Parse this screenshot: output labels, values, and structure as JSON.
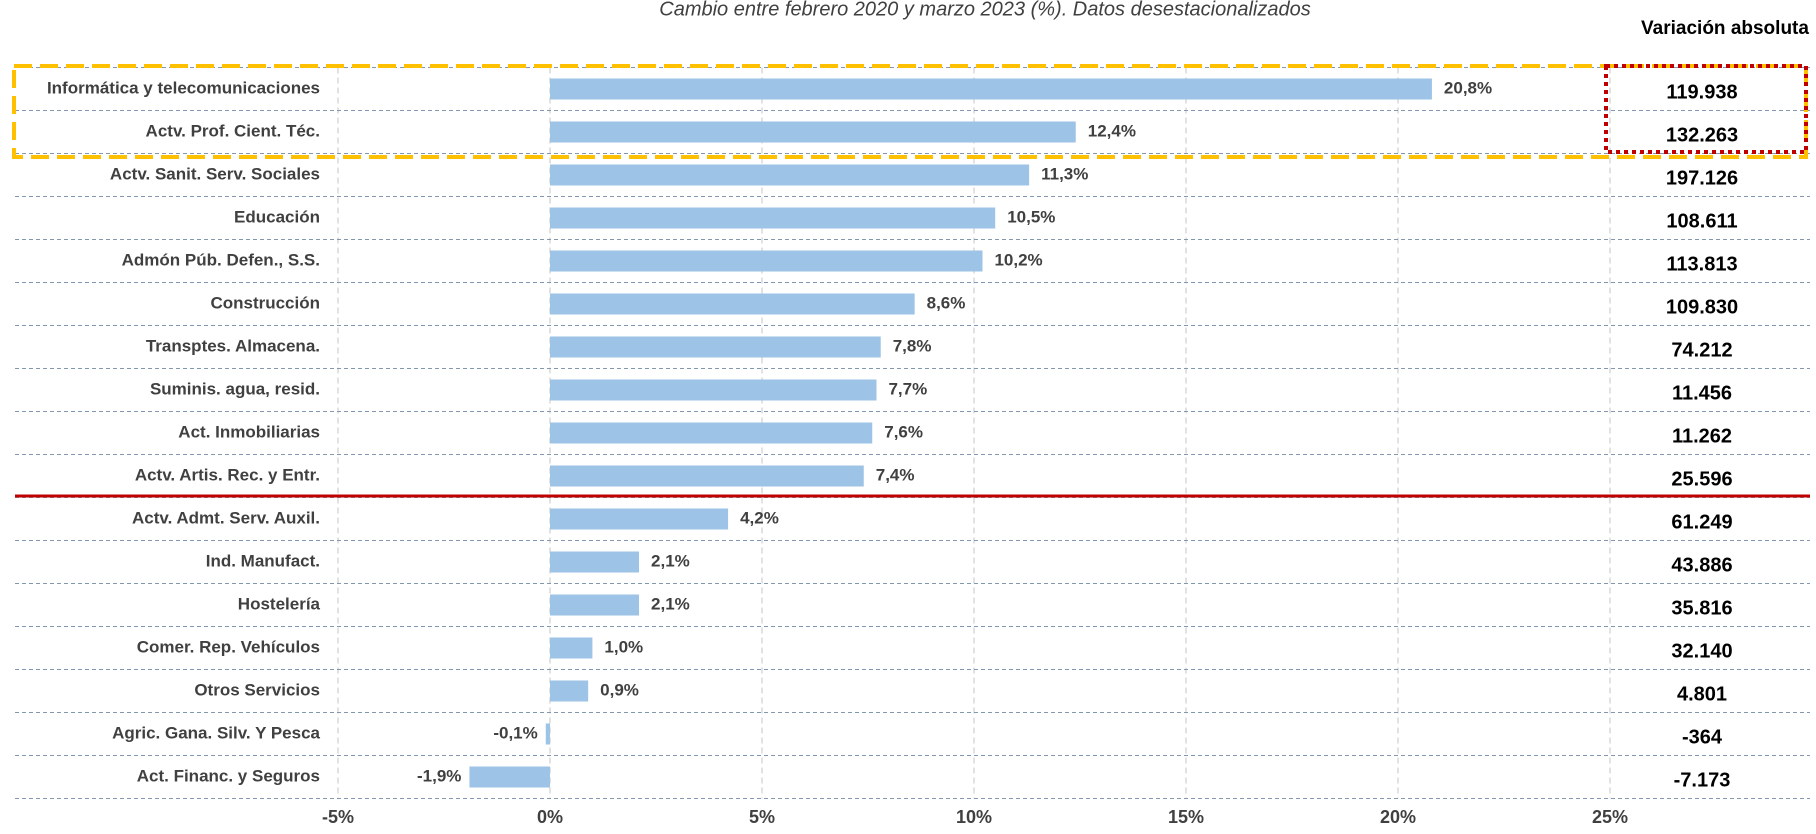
{
  "chart_data": {
    "type": "barh",
    "title": "Cambio entre febrero 2020 y marzo 2023 (%). Datos desestacionalizados",
    "categories": [
      "Informática y telecomunicaciones",
      "Actv. Prof. Cient. Téc.",
      "Actv. Sanit. Serv. Sociales",
      "Educación",
      "Admón Púb. Defen., S.S.",
      "Construcción",
      "Transptes. Almacena.",
      "Suminis. agua, resid.",
      "Act. Inmobiliarias",
      "Actv. Artis. Rec. y Entr.",
      "Actv. Admt. Serv. Auxil.",
      "Ind. Manufact.",
      "Hostelería",
      "Comer. Rep. Vehículos",
      "Otros Servicios",
      "Agric. Gana. Silv. Y Pesca",
      "Act. Financ. y Seguros"
    ],
    "values": [
      20.8,
      12.4,
      11.3,
      10.5,
      10.2,
      8.6,
      7.8,
      7.7,
      7.6,
      7.4,
      4.2,
      2.1,
      2.1,
      1.0,
      0.9,
      -0.1,
      -1.9
    ],
    "value_labels": [
      "20,8%",
      "12,4%",
      "11,3%",
      "10,5%",
      "10,2%",
      "8,6%",
      "7,8%",
      "7,7%",
      "7,6%",
      "7,4%",
      "4,2%",
      "2,1%",
      "2,1%",
      "1,0%",
      "0,9%",
      "-0,1%",
      "-1,9%"
    ],
    "color": "#9dc3e6",
    "xlim": [
      -5,
      25
    ],
    "xticks": [
      {
        "value": -5,
        "label": "-5%"
      },
      {
        "value": 0,
        "label": "0%"
      },
      {
        "value": 5,
        "label": "5%"
      },
      {
        "value": 10,
        "label": "10%"
      },
      {
        "value": 15,
        "label": "15%"
      },
      {
        "value": 20,
        "label": "20%"
      },
      {
        "value": 25,
        "label": "25%"
      }
    ],
    "grid": true,
    "absolute": {
      "title": "Variación absoluta",
      "labels": [
        "119.938",
        "132.263",
        "197.126",
        "108.611",
        "113.813",
        "109.830",
        "74.212",
        "11.456",
        "11.262",
        "25.596",
        "61.249",
        "43.886",
        "35.816",
        "32.140",
        "4.801",
        "-364",
        "-7.173"
      ]
    }
  }
}
